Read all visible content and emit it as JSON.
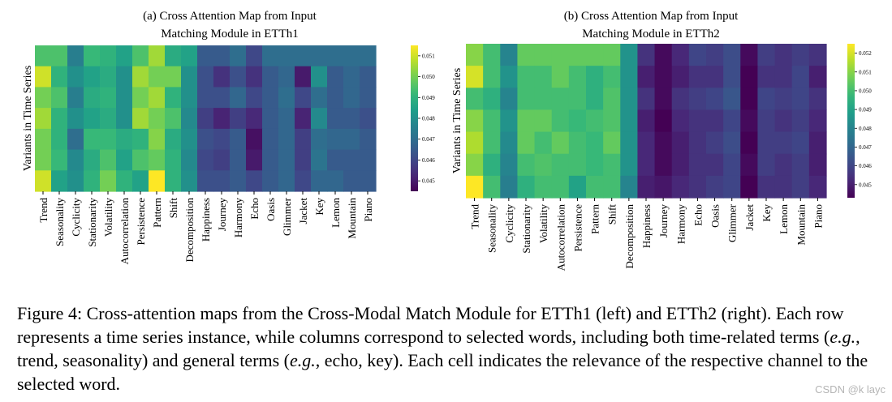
{
  "chart_data": [
    {
      "type": "heatmap",
      "title_line1": "(a) Cross Attention Map from Input",
      "title_line2": "Matching Module in ETTh1",
      "ylabel": "Variants in Time Series",
      "xlabel": "",
      "columns": [
        "Trend",
        "Seasonality",
        "Cyclicity",
        "Stationarity",
        "Volatility",
        "Autocorrelation",
        "Persistence",
        "Pattern",
        "Shift",
        "Decomposition",
        "Happiness",
        "Journey",
        "Harmony",
        "Echo",
        "Oasis",
        "Glimmer",
        "Jacket",
        "Key",
        "Lemon",
        "Mountain",
        "Piano"
      ],
      "rows": 7,
      "values": [
        [
          0.0495,
          0.0495,
          0.0475,
          0.0492,
          0.049,
          0.0485,
          0.0495,
          0.0505,
          0.0488,
          0.0485,
          0.0465,
          0.0465,
          0.047,
          0.046,
          0.047,
          0.047,
          0.047,
          0.047,
          0.047,
          0.047,
          0.047
        ],
        [
          0.051,
          0.049,
          0.048,
          0.0485,
          0.0488,
          0.048,
          0.0505,
          0.05,
          0.05,
          0.048,
          0.0462,
          0.0455,
          0.0462,
          0.0455,
          0.0465,
          0.0468,
          0.045,
          0.048,
          0.0465,
          0.0468,
          0.0465
        ],
        [
          0.05,
          0.0495,
          0.0475,
          0.0488,
          0.049,
          0.048,
          0.05,
          0.0505,
          0.049,
          0.048,
          0.0462,
          0.0462,
          0.0468,
          0.046,
          0.0465,
          0.047,
          0.046,
          0.047,
          0.0465,
          0.0468,
          0.0465
        ],
        [
          0.0505,
          0.049,
          0.048,
          0.0485,
          0.0488,
          0.048,
          0.0505,
          0.05,
          0.0495,
          0.0478,
          0.0458,
          0.0452,
          0.0458,
          0.0453,
          0.0465,
          0.0468,
          0.0452,
          0.0478,
          0.0465,
          0.0465,
          0.0462
        ],
        [
          0.05,
          0.049,
          0.047,
          0.0492,
          0.0492,
          0.0488,
          0.049,
          0.0502,
          0.0488,
          0.048,
          0.0462,
          0.046,
          0.0465,
          0.0448,
          0.0465,
          0.0468,
          0.0458,
          0.047,
          0.0468,
          0.0468,
          0.0465
        ],
        [
          0.05,
          0.0492,
          0.0478,
          0.0488,
          0.0495,
          0.0485,
          0.0495,
          0.0498,
          0.049,
          0.0478,
          0.046,
          0.0458,
          0.0465,
          0.045,
          0.0465,
          0.0468,
          0.0458,
          0.0472,
          0.0465,
          0.0465,
          0.0465
        ],
        [
          0.051,
          0.0485,
          0.048,
          0.049,
          0.05,
          0.049,
          0.0485,
          0.052,
          0.049,
          0.048,
          0.0462,
          0.0462,
          0.0465,
          0.046,
          0.0465,
          0.0468,
          0.046,
          0.0468,
          0.0468,
          0.0465,
          0.0465
        ]
      ],
      "colorbar": {
        "min": 0.0445,
        "max": 0.0515,
        "ticks": [
          "0.045",
          "0.046",
          "0.047",
          "0.048",
          "0.049",
          "0.050",
          "0.051"
        ]
      }
    },
    {
      "type": "heatmap",
      "title_line1": "(b) Cross Attention Map from Input",
      "title_line2": "Matching Module in ETTh2",
      "ylabel": "Variants in Time Series",
      "xlabel": "",
      "columns": [
        "Trend",
        "Seasonality",
        "Cyclicity",
        "Stationarity",
        "Volatility",
        "Autocorrelation",
        "Persistence",
        "Pattern",
        "Shift",
        "Decomposition",
        "Happiness",
        "Journey",
        "Harmony",
        "Echo",
        "Oasis",
        "Glimmer",
        "Jacket",
        "Key",
        "Lemon",
        "Mountain",
        "Piano"
      ],
      "rows": 7,
      "values": [
        [
          0.051,
          0.05,
          0.048,
          0.0505,
          0.0505,
          0.0505,
          0.0505,
          0.0505,
          0.0505,
          0.0485,
          0.0455,
          0.0445,
          0.0452,
          0.046,
          0.0458,
          0.0462,
          0.0445,
          0.0458,
          0.0455,
          0.0458,
          0.0455
        ],
        [
          0.052,
          0.05,
          0.0485,
          0.05,
          0.05,
          0.0505,
          0.05,
          0.0495,
          0.05,
          0.0485,
          0.045,
          0.0445,
          0.045,
          0.0455,
          0.0455,
          0.0462,
          0.0443,
          0.0455,
          0.0455,
          0.046,
          0.045
        ],
        [
          0.05,
          0.0495,
          0.048,
          0.05,
          0.05,
          0.05,
          0.05,
          0.0495,
          0.0502,
          0.0485,
          0.0455,
          0.0445,
          0.0455,
          0.0458,
          0.046,
          0.0465,
          0.0443,
          0.046,
          0.0458,
          0.046,
          0.0455
        ],
        [
          0.051,
          0.05,
          0.0485,
          0.0505,
          0.0505,
          0.05,
          0.0498,
          0.05,
          0.0502,
          0.0485,
          0.045,
          0.0443,
          0.0452,
          0.0455,
          0.0455,
          0.046,
          0.0445,
          0.0458,
          0.0455,
          0.0458,
          0.0452
        ],
        [
          0.0515,
          0.05,
          0.0482,
          0.0505,
          0.05,
          0.0505,
          0.05,
          0.0498,
          0.0505,
          0.0485,
          0.0452,
          0.0445,
          0.045,
          0.0455,
          0.0458,
          0.0462,
          0.0443,
          0.0458,
          0.0458,
          0.046,
          0.045
        ],
        [
          0.051,
          0.0495,
          0.048,
          0.05,
          0.0502,
          0.05,
          0.05,
          0.0498,
          0.05,
          0.0485,
          0.0452,
          0.0445,
          0.045,
          0.0455,
          0.0455,
          0.046,
          0.0445,
          0.0458,
          0.0455,
          0.0458,
          0.045
        ],
        [
          0.0525,
          0.05,
          0.0478,
          0.0495,
          0.05,
          0.05,
          0.049,
          0.05,
          0.05,
          0.048,
          0.045,
          0.0448,
          0.0452,
          0.0455,
          0.0458,
          0.046,
          0.0443,
          0.0455,
          0.0455,
          0.0458,
          0.0452
        ]
      ],
      "colorbar": {
        "min": 0.0443,
        "max": 0.0525,
        "ticks": [
          "0.045",
          "0.046",
          "0.047",
          "0.048",
          "0.049",
          "0.050",
          "0.051",
          "0.052"
        ]
      }
    }
  ],
  "caption": {
    "label": "Figure 4: ",
    "text_a": "Cross-attention maps from the Cross-Modal Match Module for ETTh1 (left) and ETTh2 (right).  Each row represents a time series instance, while columns correspond to selected words, including both time-related terms (",
    "eg1": "e.g.",
    "text_b": ", trend, seasonality) and general terms (",
    "eg2": "e.g.",
    "text_c": ", echo, key). Each cell indicates the relevance of the respective channel to the selected word."
  },
  "watermark": "CSDN @k layc"
}
